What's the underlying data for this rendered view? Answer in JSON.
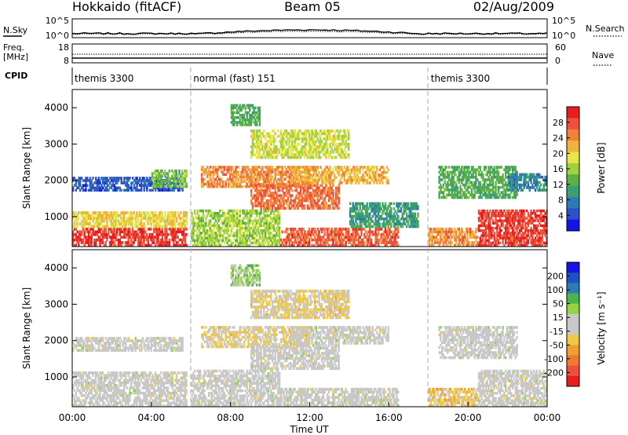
{
  "header": {
    "station": "Hokkaido (fitACF)",
    "beam": "Beam 05",
    "date": "02/Aug/2009"
  },
  "strip": {
    "nsky_label": "N.Sky",
    "nsky_tick_top": "10^5",
    "nsky_tick_bottom": "10^0",
    "nsearch_label": "N.Search",
    "freq_label_1": "Freq.",
    "freq_label_2": "[MHz]",
    "freq_tick_top": "18",
    "freq_tick_bottom": "8",
    "nave_tick_top": "60",
    "nave_tick_bottom": "0",
    "nave_label": "Nave",
    "cpid_label": "CPID",
    "cpid_segments": [
      {
        "label": "themis 3300",
        "start_hour": 0
      },
      {
        "label": "normal (fast) 151",
        "start_hour": 6
      },
      {
        "label": "themis 3300",
        "start_hour": 18
      }
    ]
  },
  "colors": {
    "power_scale": [
      "#1414e6",
      "#2e50c8",
      "#2e7ab4",
      "#3aa070",
      "#5cb046",
      "#9fd23c",
      "#e8e646",
      "#f0b43c",
      "#f0823c",
      "#ee503c",
      "#e61e1e"
    ],
    "velocity_scale": [
      "#e61e1e",
      "#ee503c",
      "#f07832",
      "#f0a030",
      "#f0c846",
      "#c8c8c8",
      "#c8c8c8",
      "#96d246",
      "#4cb44c",
      "#2e7ab4",
      "#1e50c8",
      "#1414e6"
    ]
  },
  "chart_data": [
    {
      "type": "heatmap",
      "panel": "power",
      "ylabel": "Slant Range [km]",
      "yticks": [
        "1000",
        "2000",
        "3000",
        "4000"
      ],
      "ylim": [
        180,
        4500
      ],
      "xlim_hours": [
        0,
        24
      ],
      "colorbar_label": "Power [dB]",
      "colorbar_ticks": [
        "4",
        "8",
        "12",
        "16",
        "20",
        "24",
        "28"
      ],
      "colorbar_range": [
        0,
        32
      ],
      "regions_description": "approximate backscatter regions (time in UT hours, range in km)",
      "regions": [
        {
          "t0": 0.0,
          "t1": 5.8,
          "r0": 180,
          "r1": 700,
          "v": 29
        },
        {
          "t0": 0.0,
          "t1": 5.8,
          "r0": 700,
          "r1": 1150,
          "v": 20
        },
        {
          "t0": 0.0,
          "t1": 5.6,
          "r0": 1700,
          "r1": 2100,
          "v": 5
        },
        {
          "t0": 4.0,
          "t1": 5.8,
          "r0": 1800,
          "r1": 2300,
          "v": 14
        },
        {
          "t0": 6.0,
          "t1": 10.5,
          "r0": 180,
          "r1": 1200,
          "v": 16
        },
        {
          "t0": 6.5,
          "t1": 12.0,
          "r0": 1800,
          "r1": 2400,
          "v": 24
        },
        {
          "t0": 9.0,
          "t1": 13.5,
          "r0": 1200,
          "r1": 1900,
          "v": 26
        },
        {
          "t0": 10.5,
          "t1": 16.5,
          "r0": 180,
          "r1": 700,
          "v": 27
        },
        {
          "t0": 11.0,
          "t1": 16.0,
          "r0": 1900,
          "r1": 2400,
          "v": 22
        },
        {
          "t0": 9.0,
          "t1": 14.0,
          "r0": 2600,
          "r1": 3400,
          "v": 18
        },
        {
          "t0": 8.0,
          "t1": 9.5,
          "r0": 3500,
          "r1": 4100,
          "v": 12
        },
        {
          "t0": 14.0,
          "t1": 17.5,
          "r0": 700,
          "r1": 1400,
          "v": 10
        },
        {
          "t0": 18.0,
          "t1": 20.5,
          "r0": 180,
          "r1": 700,
          "v": 24
        },
        {
          "t0": 18.5,
          "t1": 22.5,
          "r0": 1500,
          "r1": 2400,
          "v": 12
        },
        {
          "t0": 20.5,
          "t1": 24.0,
          "r0": 180,
          "r1": 1200,
          "v": 29
        },
        {
          "t0": 22.0,
          "t1": 24.0,
          "r0": 1700,
          "r1": 2200,
          "v": 8
        }
      ]
    },
    {
      "type": "heatmap",
      "panel": "velocity",
      "ylabel": "Slant Range [km]",
      "yticks": [
        "1000",
        "2000",
        "3000",
        "4000"
      ],
      "ylim": [
        180,
        4500
      ],
      "xlim_hours": [
        0,
        24
      ],
      "xticks": [
        "00:00",
        "04:00",
        "08:00",
        "12:00",
        "16:00",
        "20:00",
        "00:00"
      ],
      "xlabel": "Time UT",
      "colorbar_label": "Velocity [m s⁻¹]",
      "colorbar_ticks": [
        "200",
        "100",
        "50",
        "15",
        "-15",
        "-50",
        "-100",
        "-200"
      ],
      "colorbar_range": [
        -250,
        250
      ],
      "regions_description": "approximate Doppler velocity regions (time in UT hours, range in km)",
      "regions": [
        {
          "t0": 0.0,
          "t1": 5.8,
          "r0": 180,
          "r1": 1150,
          "v": 0
        },
        {
          "t0": 0.0,
          "t1": 5.6,
          "r0": 1700,
          "r1": 2100,
          "v": 0
        },
        {
          "t0": 6.0,
          "t1": 10.5,
          "r0": 180,
          "r1": 1200,
          "v": 0
        },
        {
          "t0": 6.5,
          "t1": 12.0,
          "r0": 1800,
          "r1": 2400,
          "v": -40
        },
        {
          "t0": 9.0,
          "t1": 13.5,
          "r0": 1200,
          "r1": 1900,
          "v": 0
        },
        {
          "t0": 10.5,
          "t1": 16.5,
          "r0": 180,
          "r1": 700,
          "v": 0
        },
        {
          "t0": 11.0,
          "t1": 16.0,
          "r0": 1900,
          "r1": 2400,
          "v": 0
        },
        {
          "t0": 9.0,
          "t1": 14.0,
          "r0": 2600,
          "r1": 3400,
          "v": -40
        },
        {
          "t0": 8.0,
          "t1": 9.5,
          "r0": 3500,
          "r1": 4100,
          "v": 60
        },
        {
          "t0": 18.0,
          "t1": 20.5,
          "r0": 180,
          "r1": 700,
          "v": -60
        },
        {
          "t0": 18.5,
          "t1": 22.5,
          "r0": 1500,
          "r1": 2400,
          "v": 0
        },
        {
          "t0": 20.5,
          "t1": 24.0,
          "r0": 180,
          "r1": 1200,
          "v": 0
        }
      ]
    }
  ]
}
